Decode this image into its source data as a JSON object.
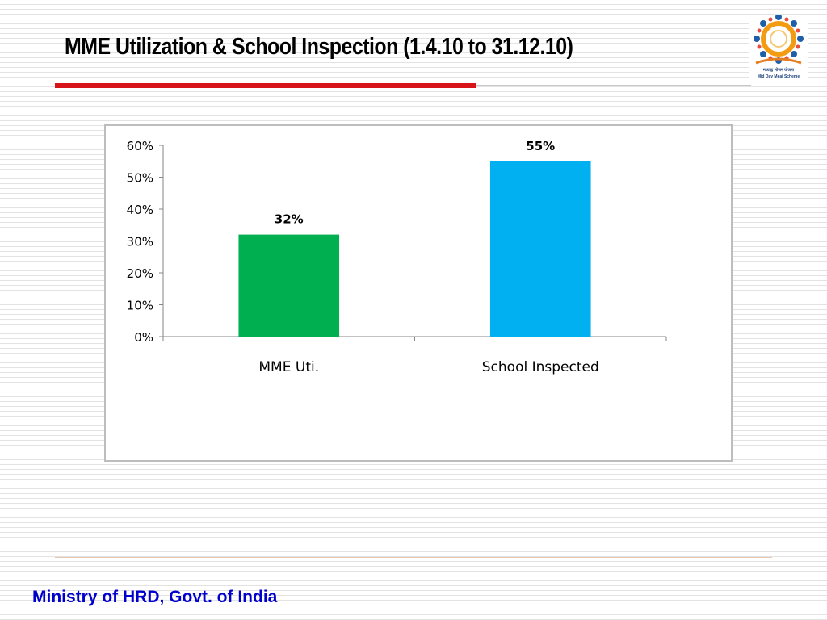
{
  "slide": {
    "title": "MME Utilization  & School Inspection (1.4.10 to 31.12.10)",
    "footer": "Ministry of HRD, Govt. of India",
    "accent_color": "#d7141a",
    "footer_color": "#0000cc"
  },
  "logo": {
    "icon": "mid-day-meal-logo-icon",
    "caption_hindi": "मध्याह्न भोजन योजना",
    "caption_english": "Mid Day Meal Scheme"
  },
  "chart_data": {
    "type": "bar",
    "categories": [
      "MME Uti.",
      "School Inspected"
    ],
    "values": [
      0.32,
      0.55
    ],
    "data_labels": [
      "32%",
      "55%"
    ],
    "bar_colors": [
      "#00b050",
      "#00b0f0"
    ],
    "y_ticks": [
      "0%",
      "10%",
      "20%",
      "30%",
      "40%",
      "50%",
      "60%"
    ],
    "ylim": [
      0,
      0.6
    ],
    "grid": false,
    "legend": "none"
  }
}
